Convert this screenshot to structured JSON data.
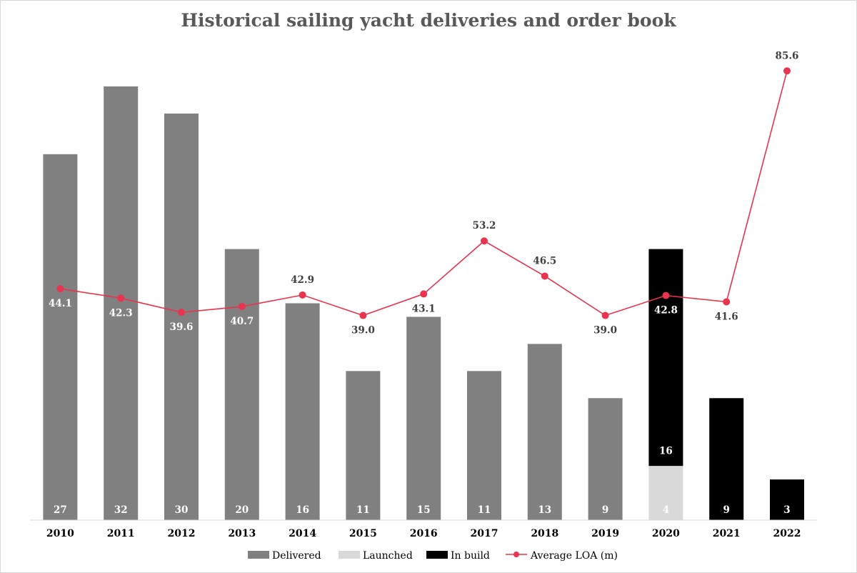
{
  "chart_data": {
    "type": "bar",
    "title": "Historical sailing yacht deliveries and order book",
    "xlabel": "",
    "ylabel": "",
    "categories": [
      "2010",
      "2011",
      "2012",
      "2013",
      "2014",
      "2015",
      "2016",
      "2017",
      "2018",
      "2019",
      "2020",
      "2021",
      "2022"
    ],
    "series": [
      {
        "name": "Delivered",
        "kind": "bar",
        "color": "#808080",
        "values": [
          27,
          32,
          30,
          20,
          16,
          11,
          15,
          11,
          13,
          9,
          0,
          0,
          0
        ]
      },
      {
        "name": "Launched",
        "kind": "bar",
        "color": "#d9d9d9",
        "values": [
          0,
          0,
          0,
          0,
          0,
          0,
          0,
          0,
          0,
          0,
          4,
          0,
          0
        ]
      },
      {
        "name": "In build",
        "kind": "bar",
        "color": "#000000",
        "values": [
          0,
          0,
          0,
          0,
          0,
          0,
          0,
          0,
          0,
          0,
          16,
          9,
          3
        ]
      },
      {
        "name": "Average LOA (m)",
        "kind": "line",
        "color": "#e8344e",
        "values": [
          44.1,
          42.3,
          39.6,
          40.7,
          42.9,
          39.0,
          43.1,
          53.2,
          46.5,
          39.0,
          42.8,
          41.6,
          85.6
        ]
      }
    ],
    "bar_labels": [
      "27",
      "32",
      "30",
      "20",
      "16",
      "11",
      "15",
      "11",
      "13",
      "9",
      "4",
      "16",
      "9",
      "3"
    ],
    "line_labels": [
      "44.1",
      "42.3",
      "39.6",
      "40.7",
      "42.9",
      "39.0",
      "43.1",
      "53.2",
      "46.5",
      "39.0",
      "42.8",
      "41.6",
      "85.6"
    ],
    "stacked": true,
    "grid": false,
    "legend_position": "bottom"
  }
}
